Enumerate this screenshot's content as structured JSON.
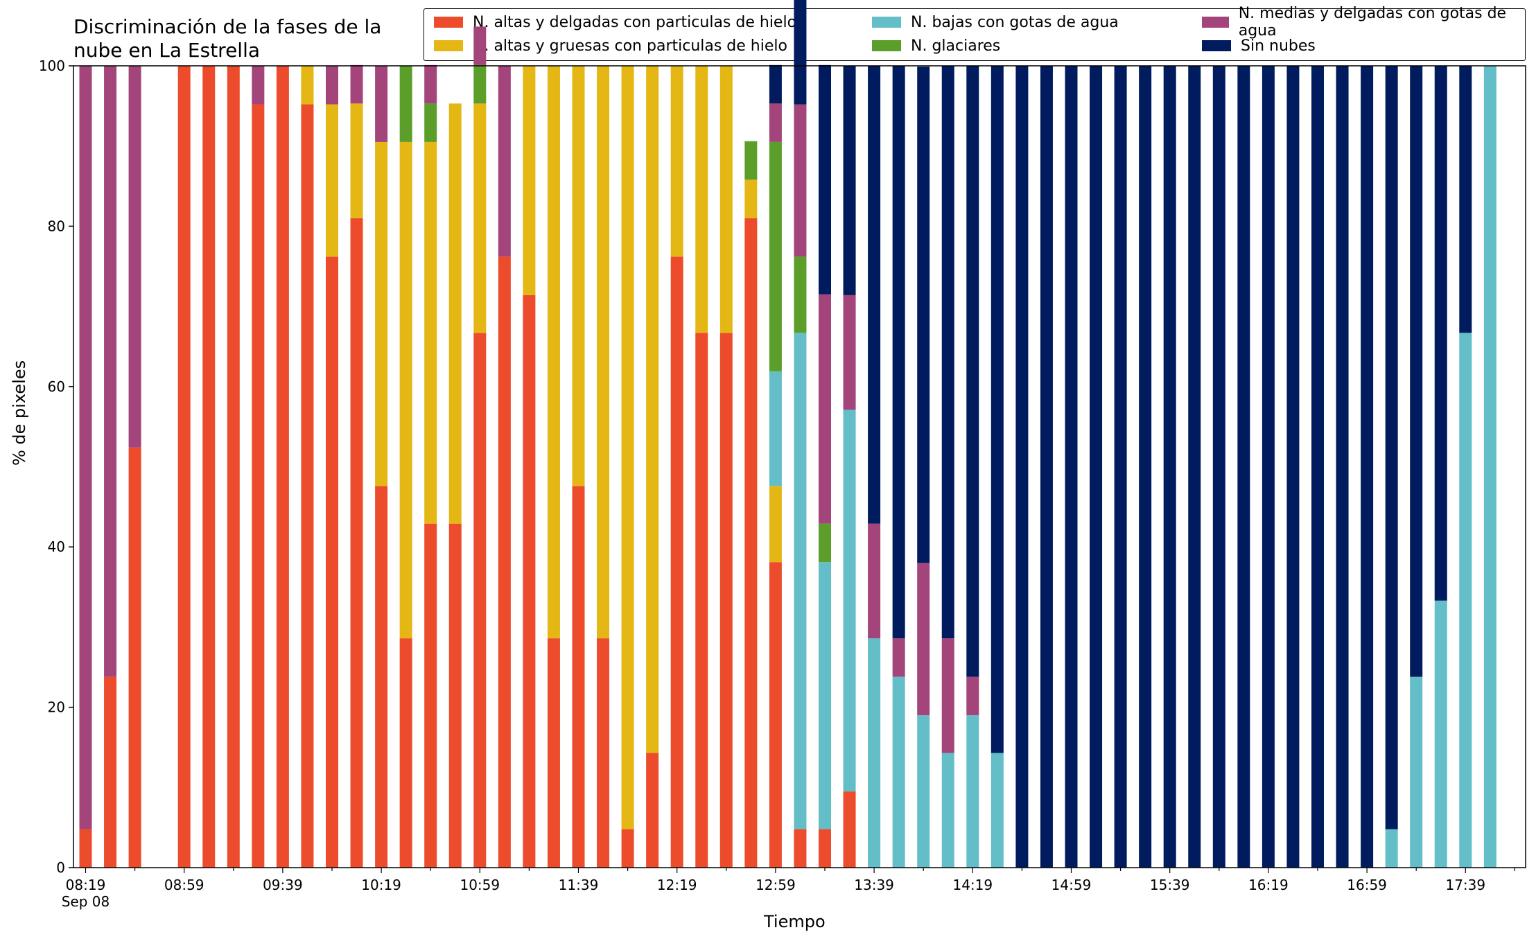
{
  "chart_data": {
    "type": "bar",
    "stacked": true,
    "title": "Discriminación de la fases de la\nnube en La Estrella",
    "xlabel": "Tiempo",
    "ylabel": "% de pixeles",
    "ylim": [
      0,
      100
    ],
    "yticks": [
      0,
      20,
      40,
      60,
      80,
      100
    ],
    "grid": false,
    "legend_position": "top-right",
    "x_tick_labels": [
      "08:19",
      "08:59",
      "09:39",
      "10:19",
      "10:59",
      "11:39",
      "12:19",
      "12:59",
      "13:39",
      "14:19",
      "14:59",
      "15:39",
      "16:19",
      "16:59",
      "17:39"
    ],
    "x_date_label": "Sep 08",
    "categories": [
      "08:19",
      "08:29",
      "08:39",
      "08:49",
      "08:59",
      "09:09",
      "09:19",
      "09:29",
      "09:39",
      "09:49",
      "09:59",
      "10:09",
      "10:19",
      "10:29",
      "10:39",
      "10:49",
      "10:59",
      "11:09",
      "11:19",
      "11:29",
      "11:39",
      "11:49",
      "11:59",
      "12:09",
      "12:19",
      "12:29",
      "12:39",
      "12:49",
      "12:59",
      "13:09",
      "13:19",
      "13:29",
      "13:39",
      "13:49",
      "13:59",
      "14:09",
      "14:19",
      "14:29",
      "14:39",
      "14:49",
      "14:59",
      "15:09",
      "15:19",
      "15:29",
      "15:39",
      "15:49",
      "15:59",
      "16:09",
      "16:19",
      "16:29",
      "16:39",
      "16:49",
      "16:59",
      "17:09",
      "17:19",
      "17:29",
      "17:39",
      "17:49"
    ],
    "series": [
      {
        "name": "N. altas y delgadas con particulas de hielo",
        "color": "#ed4c2c",
        "values": [
          4.8,
          23.8,
          52.4,
          0,
          100,
          100,
          100,
          95.2,
          100,
          95.2,
          76.2,
          81,
          47.6,
          28.6,
          42.9,
          42.9,
          66.7,
          76.2,
          71.4,
          28.6,
          47.6,
          28.6,
          4.8,
          14.3,
          76.2,
          66.7,
          66.7,
          81,
          38.1,
          4.8,
          4.8,
          9.5,
          0,
          0,
          0,
          0,
          0,
          0,
          0,
          0,
          0,
          0,
          0,
          0,
          0,
          0,
          0,
          0,
          0,
          0,
          0,
          0,
          0,
          0,
          0,
          0,
          0,
          0
        ]
      },
      {
        "name": "N. altas y gruesas con particulas de hielo",
        "color": "#e4b714",
        "values": [
          0,
          0,
          0,
          0,
          0,
          0,
          0,
          0,
          0,
          4.8,
          19,
          14.3,
          42.9,
          61.9,
          47.6,
          52.4,
          28.6,
          0,
          28.6,
          71.4,
          52.4,
          71.4,
          95.2,
          85.7,
          23.8,
          33.3,
          33.3,
          4.8,
          9.5,
          0,
          0,
          0,
          0,
          0,
          0,
          0,
          0,
          0,
          0,
          0,
          0,
          0,
          0,
          0,
          0,
          0,
          0,
          0,
          0,
          0,
          0,
          0,
          0,
          0,
          0,
          0,
          0,
          0
        ]
      },
      {
        "name": "N. bajas con gotas de agua",
        "color": "#63bec8",
        "values": [
          0,
          0,
          0,
          0,
          0,
          0,
          0,
          0,
          0,
          0,
          0,
          0,
          0,
          0,
          0,
          0,
          0,
          0,
          0,
          0,
          0,
          0,
          0,
          0,
          0,
          0,
          0,
          0,
          14.3,
          61.9,
          33.3,
          47.6,
          28.6,
          23.8,
          19,
          14.3,
          19,
          14.3,
          0,
          0,
          0,
          0,
          0,
          0,
          0,
          0,
          0,
          0,
          0,
          0,
          0,
          0,
          0,
          4.8,
          23.8,
          33.3,
          66.7,
          100
        ]
      },
      {
        "name": "N. glaciares",
        "color": "#5b9e2a",
        "values": [
          0,
          0,
          0,
          0,
          0,
          0,
          0,
          0,
          0,
          0,
          0,
          0,
          0,
          9.5,
          4.8,
          0,
          4.8,
          0,
          0,
          0,
          0,
          0,
          0,
          0,
          0,
          0,
          0,
          4.8,
          28.6,
          9.5,
          4.8,
          0,
          0,
          0,
          0,
          0,
          0,
          0,
          0,
          0,
          0,
          0,
          0,
          0,
          0,
          0,
          0,
          0,
          0,
          0,
          0,
          0,
          0,
          0,
          0,
          0,
          0,
          0
        ]
      },
      {
        "name": "N. medias y delgadas con gotas de agua",
        "color": "#a3457b",
        "values": [
          95.2,
          76.2,
          47.6,
          0,
          0,
          0,
          0,
          4.8,
          0,
          0,
          4.8,
          4.8,
          9.5,
          0,
          4.8,
          0,
          4.8,
          23.8,
          0,
          0,
          0,
          0,
          0,
          0,
          0,
          0,
          0,
          0,
          4.8,
          19,
          28.6,
          14.3,
          14.3,
          4.8,
          19,
          14.3,
          4.8,
          0,
          0,
          0,
          0,
          0,
          0,
          0,
          0,
          0,
          0,
          0,
          0,
          0,
          0,
          0,
          0,
          0,
          0,
          0,
          0,
          0
        ]
      },
      {
        "name": "Sin nubes",
        "color": "#001c5f",
        "values": [
          0,
          0,
          0,
          0,
          0,
          0,
          0,
          0,
          0,
          0,
          0,
          0,
          0,
          0,
          0,
          0,
          0,
          0,
          0,
          0,
          0,
          0,
          0,
          0,
          0,
          0,
          0,
          0,
          4.8,
          14.3,
          28.6,
          28.6,
          57.1,
          71.4,
          61.9,
          71.4,
          76.2,
          85.7,
          100,
          100,
          100,
          100,
          100,
          100,
          100,
          100,
          100,
          100,
          100,
          100,
          100,
          100,
          100,
          95.2,
          76.2,
          66.7,
          33.3,
          0
        ]
      }
    ],
    "stack_order": [
      0,
      1,
      2,
      3,
      4,
      5
    ]
  }
}
